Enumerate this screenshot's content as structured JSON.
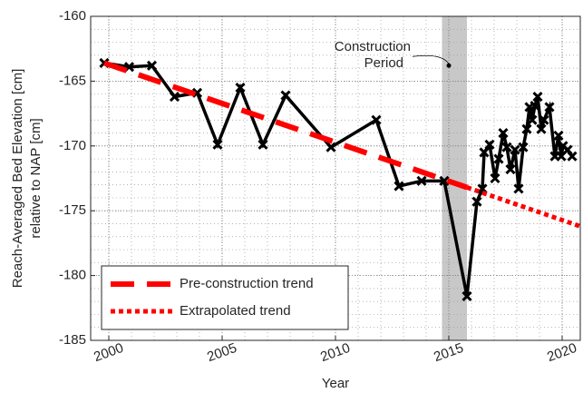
{
  "chart_data": {
    "type": "line",
    "xlabel": "Year",
    "ylabel": [
      "Reach-Averaged Bed Elevation [cm]",
      "relative to NAP [cm]"
    ],
    "xlim": [
      1999.2,
      2020.8
    ],
    "xticks": [
      2000,
      2005,
      2010,
      2015,
      2020
    ],
    "ylim": [
      -185,
      -160
    ],
    "yticks": [
      -185,
      -180,
      -175,
      -170,
      -165,
      -160
    ],
    "grid": true,
    "minor_grid": {
      "x": 1,
      "y": 1
    },
    "shaded_span": {
      "x": [
        2014.7,
        2015.8
      ],
      "color": "#c8c8c8"
    },
    "annotation": {
      "text": [
        "Construction",
        "Period"
      ],
      "x": 2015,
      "y": -163.8
    },
    "legend": "lower left",
    "series": [
      {
        "color": "#000000",
        "style": "solid",
        "marker": "x",
        "x": [
          1999.8,
          2000.9,
          2001.9,
          2002.9,
          2003.9,
          2004.8,
          2005.8,
          2006.8,
          2007.8,
          2009.8,
          2011.8,
          2012.8,
          2013.8,
          2014.8,
          2015.8,
          2016.24,
          2016.48,
          2016.56,
          2016.8,
          2017.04,
          2017.2,
          2017.4,
          2017.56,
          2017.72,
          2017.92,
          2018.08,
          2018.28,
          2018.44,
          2018.56,
          2018.68,
          2018.8,
          2018.92,
          2019.08,
          2019.2,
          2019.44,
          2019.68,
          2019.84,
          2019.96,
          2020.04,
          2020.24,
          2020.44
        ],
        "values": [
          -163.6,
          -163.9,
          -163.8,
          -166.2,
          -165.9,
          -169.9,
          -165.5,
          -169.9,
          -166.1,
          -170.1,
          -168.0,
          -173.1,
          -172.7,
          -172.7,
          -181.6,
          -174.3,
          -173.3,
          -170.5,
          -169.9,
          -172.5,
          -171.0,
          -169.0,
          -170.1,
          -171.8,
          -170.3,
          -173.3,
          -170.1,
          -168.7,
          -167.0,
          -168.0,
          -166.9,
          -166.2,
          -168.7,
          -168.0,
          -167.0,
          -170.8,
          -169.2,
          -170.8,
          -170.0,
          -170.3,
          -170.8
        ]
      },
      {
        "name": "Pre-construction trend",
        "color": "#ff0000",
        "style": "dashed",
        "x": [
          1999.8,
          2015.8
        ],
        "values": [
          -163.6,
          -173.2
        ]
      },
      {
        "name": "Extrapolated trend",
        "color": "#ff0000",
        "style": "dotted",
        "x": [
          2015.8,
          2020.8
        ],
        "values": [
          -173.2,
          -176.2
        ]
      }
    ]
  }
}
